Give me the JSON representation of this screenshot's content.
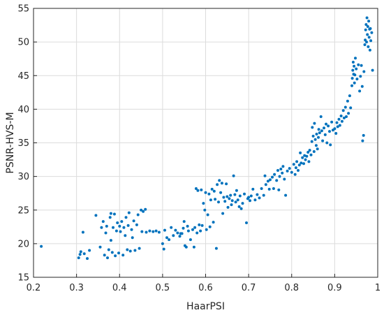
{
  "chart_data": {
    "type": "scatter",
    "title": "",
    "xlabel": "HaarPSI",
    "ylabel": "PSNR-HVS-M",
    "xlim": [
      0.2,
      1.0
    ],
    "ylim": [
      15,
      55
    ],
    "grid": true,
    "x_ticks": [
      "0.2",
      "0.3",
      "0.4",
      "0.5",
      "0.6",
      "0.7",
      "0.8",
      "0.9",
      "1"
    ],
    "y_ticks": [
      "15",
      "20",
      "25",
      "30",
      "35",
      "40",
      "45",
      "50",
      "55"
    ],
    "marker_color": "#0072BD",
    "series": [
      {
        "points": [
          [
            0.218,
            19.6
          ],
          [
            0.305,
            17.9
          ],
          [
            0.308,
            18.4
          ],
          [
            0.31,
            18.8
          ],
          [
            0.315,
            21.7
          ],
          [
            0.318,
            18.5
          ],
          [
            0.325,
            17.8
          ],
          [
            0.33,
            19.0
          ],
          [
            0.345,
            24.2
          ],
          [
            0.355,
            19.5
          ],
          [
            0.358,
            22.4
          ],
          [
            0.362,
            23.3
          ],
          [
            0.365,
            18.3
          ],
          [
            0.368,
            21.6
          ],
          [
            0.37,
            22.6
          ],
          [
            0.372,
            17.9
          ],
          [
            0.375,
            19.1
          ],
          [
            0.378,
            23.9
          ],
          [
            0.38,
            20.5
          ],
          [
            0.38,
            24.5
          ],
          [
            0.383,
            18.7
          ],
          [
            0.385,
            22.4
          ],
          [
            0.388,
            24.4
          ],
          [
            0.39,
            18.2
          ],
          [
            0.393,
            21.9
          ],
          [
            0.395,
            23.1
          ],
          [
            0.398,
            18.6
          ],
          [
            0.4,
            22.6
          ],
          [
            0.402,
            21.8
          ],
          [
            0.405,
            23.3
          ],
          [
            0.408,
            18.3
          ],
          [
            0.41,
            22.4
          ],
          [
            0.413,
            21.2
          ],
          [
            0.415,
            23.9
          ],
          [
            0.418,
            19.1
          ],
          [
            0.42,
            22.7
          ],
          [
            0.422,
            24.6
          ],
          [
            0.425,
            18.9
          ],
          [
            0.428,
            22.1
          ],
          [
            0.43,
            20.9
          ],
          [
            0.433,
            23.4
          ],
          [
            0.436,
            19.0
          ],
          [
            0.44,
            22.8
          ],
          [
            0.443,
            24.3
          ],
          [
            0.446,
            19.3
          ],
          [
            0.45,
            25.0
          ],
          [
            0.452,
            21.8
          ],
          [
            0.455,
            24.8
          ],
          [
            0.46,
            25.1
          ],
          [
            0.462,
            21.7
          ],
          [
            0.47,
            21.9
          ],
          [
            0.478,
            21.8
          ],
          [
            0.485,
            21.9
          ],
          [
            0.492,
            21.7
          ],
          [
            0.5,
            20.0
          ],
          [
            0.503,
            19.2
          ],
          [
            0.505,
            22.0
          ],
          [
            0.51,
            20.9
          ],
          [
            0.515,
            20.6
          ],
          [
            0.52,
            22.4
          ],
          [
            0.525,
            21.2
          ],
          [
            0.53,
            22.0
          ],
          [
            0.535,
            21.6
          ],
          [
            0.54,
            21.1
          ],
          [
            0.542,
            21.5
          ],
          [
            0.545,
            21.5
          ],
          [
            0.548,
            22.3
          ],
          [
            0.55,
            23.3
          ],
          [
            0.552,
            19.7
          ],
          [
            0.555,
            19.5
          ],
          [
            0.558,
            22.6
          ],
          [
            0.56,
            21.9
          ],
          [
            0.565,
            20.6
          ],
          [
            0.57,
            22.1
          ],
          [
            0.573,
            19.5
          ],
          [
            0.575,
            22.4
          ],
          [
            0.578,
            28.2
          ],
          [
            0.58,
            21.6
          ],
          [
            0.582,
            27.9
          ],
          [
            0.585,
            22.8
          ],
          [
            0.588,
            21.9
          ],
          [
            0.59,
            28.0
          ],
          [
            0.592,
            22.7
          ],
          [
            0.595,
            26.0
          ],
          [
            0.598,
            25.0
          ],
          [
            0.6,
            27.6
          ],
          [
            0.602,
            22.1
          ],
          [
            0.605,
            24.3
          ],
          [
            0.608,
            27.4
          ],
          [
            0.61,
            22.5
          ],
          [
            0.612,
            26.5
          ],
          [
            0.615,
            28.1
          ],
          [
            0.618,
            23.2
          ],
          [
            0.62,
            27.8
          ],
          [
            0.622,
            26.6
          ],
          [
            0.625,
            19.3
          ],
          [
            0.627,
            28.8
          ],
          [
            0.63,
            26.2
          ],
          [
            0.632,
            29.4
          ],
          [
            0.635,
            27.6
          ],
          [
            0.638,
            29.0
          ],
          [
            0.64,
            24.5
          ],
          [
            0.642,
            26.9
          ],
          [
            0.645,
            26.3
          ],
          [
            0.648,
            28.9
          ],
          [
            0.65,
            27.0
          ],
          [
            0.652,
            25.4
          ],
          [
            0.655,
            26.7
          ],
          [
            0.658,
            27.2
          ],
          [
            0.66,
            25.8
          ],
          [
            0.662,
            26.4
          ],
          [
            0.665,
            30.1
          ],
          [
            0.668,
            27.3
          ],
          [
            0.67,
            26.2
          ],
          [
            0.672,
            27.9
          ],
          [
            0.675,
            26.5
          ],
          [
            0.678,
            25.5
          ],
          [
            0.68,
            27.1
          ],
          [
            0.683,
            25.2
          ],
          [
            0.686,
            26.0
          ],
          [
            0.69,
            27.4
          ],
          [
            0.695,
            23.1
          ],
          [
            0.698,
            26.7
          ],
          [
            0.7,
            26.9
          ],
          [
            0.703,
            26.4
          ],
          [
            0.706,
            27.1
          ],
          [
            0.71,
            28.1
          ],
          [
            0.715,
            26.5
          ],
          [
            0.72,
            27.3
          ],
          [
            0.725,
            26.8
          ],
          [
            0.73,
            28.2
          ],
          [
            0.735,
            27.2
          ],
          [
            0.738,
            30.1
          ],
          [
            0.74,
            28.8
          ],
          [
            0.745,
            29.3
          ],
          [
            0.748,
            28.1
          ],
          [
            0.75,
            29.5
          ],
          [
            0.755,
            29.9
          ],
          [
            0.758,
            28.2
          ],
          [
            0.76,
            30.3
          ],
          [
            0.765,
            29.4
          ],
          [
            0.768,
            30.9
          ],
          [
            0.77,
            28.0
          ],
          [
            0.772,
            30.0
          ],
          [
            0.775,
            31.1
          ],
          [
            0.778,
            30.5
          ],
          [
            0.78,
            31.5
          ],
          [
            0.783,
            29.6
          ],
          [
            0.786,
            27.2
          ],
          [
            0.79,
            30.8
          ],
          [
            0.795,
            31.2
          ],
          [
            0.8,
            30.6
          ],
          [
            0.805,
            31.8
          ],
          [
            0.808,
            30.3
          ],
          [
            0.81,
            31.3
          ],
          [
            0.812,
            32.2
          ],
          [
            0.815,
            30.9
          ],
          [
            0.818,
            31.7
          ],
          [
            0.82,
            33.5
          ],
          [
            0.822,
            32.0
          ],
          [
            0.825,
            32.8
          ],
          [
            0.828,
            31.9
          ],
          [
            0.83,
            33.1
          ],
          [
            0.832,
            32.5
          ],
          [
            0.835,
            33.0
          ],
          [
            0.838,
            33.6
          ],
          [
            0.84,
            32.2
          ],
          [
            0.842,
            33.9
          ],
          [
            0.845,
            33.2
          ],
          [
            0.847,
            35.2
          ],
          [
            0.848,
            37.3
          ],
          [
            0.85,
            36.0
          ],
          [
            0.852,
            33.7
          ],
          [
            0.853,
            37.9
          ],
          [
            0.855,
            35.5
          ],
          [
            0.857,
            34.6
          ],
          [
            0.858,
            36.3
          ],
          [
            0.86,
            34.1
          ],
          [
            0.862,
            35.8
          ],
          [
            0.863,
            37.0
          ],
          [
            0.865,
            36.5
          ],
          [
            0.868,
            38.9
          ],
          [
            0.87,
            36.8
          ],
          [
            0.872,
            35.3
          ],
          [
            0.875,
            37.2
          ],
          [
            0.878,
            36.2
          ],
          [
            0.88,
            37.8
          ],
          [
            0.882,
            35.0
          ],
          [
            0.885,
            37.5
          ],
          [
            0.888,
            36.7
          ],
          [
            0.89,
            34.7
          ],
          [
            0.893,
            38.1
          ],
          [
            0.896,
            36.9
          ],
          [
            0.9,
            37.1
          ],
          [
            0.903,
            36.4
          ],
          [
            0.905,
            38.0
          ],
          [
            0.907,
            37.4
          ],
          [
            0.91,
            38.5
          ],
          [
            0.912,
            37.6
          ],
          [
            0.915,
            39.0
          ],
          [
            0.917,
            38.2
          ],
          [
            0.92,
            39.8
          ],
          [
            0.922,
            38.7
          ],
          [
            0.925,
            40.3
          ],
          [
            0.927,
            38.9
          ],
          [
            0.93,
            41.2
          ],
          [
            0.932,
            39.4
          ],
          [
            0.935,
            42.0
          ],
          [
            0.937,
            40.2
          ],
          [
            0.94,
            43.5
          ],
          [
            0.941,
            44.6
          ],
          [
            0.942,
            45.8
          ],
          [
            0.943,
            47.0
          ],
          [
            0.944,
            45.2
          ],
          [
            0.945,
            46.4
          ],
          [
            0.946,
            43.9
          ],
          [
            0.947,
            45.1
          ],
          [
            0.948,
            47.6
          ],
          [
            0.95,
            46.0
          ],
          [
            0.952,
            44.5
          ],
          [
            0.955,
            46.6
          ],
          [
            0.958,
            42.7
          ],
          [
            0.96,
            44.9
          ],
          [
            0.962,
            46.5
          ],
          [
            0.964,
            43.4
          ],
          [
            0.965,
            35.3
          ],
          [
            0.967,
            36.1
          ],
          [
            0.968,
            45.6
          ],
          [
            0.97,
            49.6
          ],
          [
            0.971,
            50.3
          ],
          [
            0.972,
            51.8
          ],
          [
            0.973,
            52.6
          ],
          [
            0.974,
            50.0
          ],
          [
            0.975,
            53.6
          ],
          [
            0.976,
            51.1
          ],
          [
            0.977,
            52.3
          ],
          [
            0.978,
            49.3
          ],
          [
            0.979,
            53.1
          ],
          [
            0.98,
            50.7
          ],
          [
            0.981,
            51.9
          ],
          [
            0.982,
            48.8
          ],
          [
            0.983,
            52.0
          ],
          [
            0.984,
            50.2
          ],
          [
            0.986,
            51.4
          ],
          [
            0.988,
            45.8
          ]
        ]
      }
    ]
  }
}
